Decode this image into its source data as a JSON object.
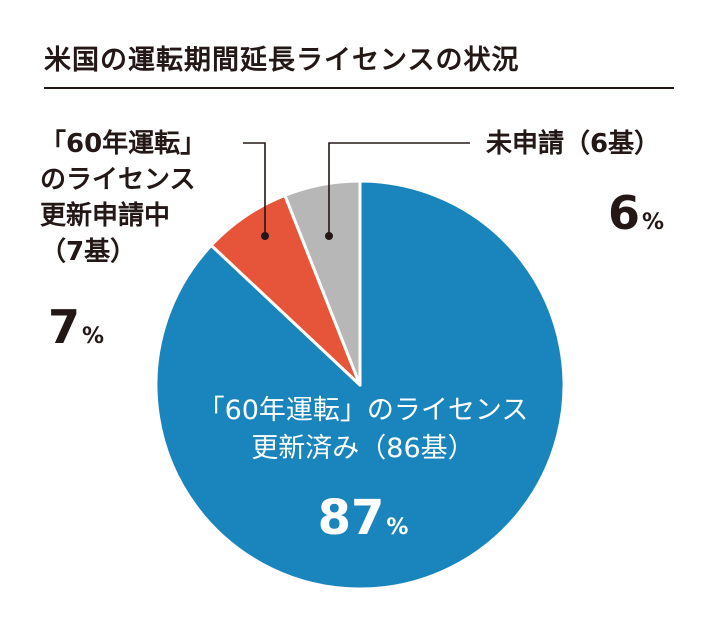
{
  "chart_data": {
    "type": "pie",
    "title": "米国の運転期間延長ライセンスの状況",
    "slices": [
      {
        "label_lines": [
          "「60年運転」のライセンス",
          "更新済み（86基）"
        ],
        "value": 87,
        "value_text": "87",
        "unit": "%",
        "color": "#1a85bd"
      },
      {
        "label_lines": [
          "「60年運転」",
          "のライセンス",
          "更新申請中",
          "（7基）"
        ],
        "value": 7,
        "value_text": "7",
        "unit": "%",
        "color": "#e6553a"
      },
      {
        "label_lines": [
          "未申請（6基）"
        ],
        "value": 6,
        "value_text": "6",
        "unit": "%",
        "color": "#b7b7b7"
      }
    ]
  }
}
